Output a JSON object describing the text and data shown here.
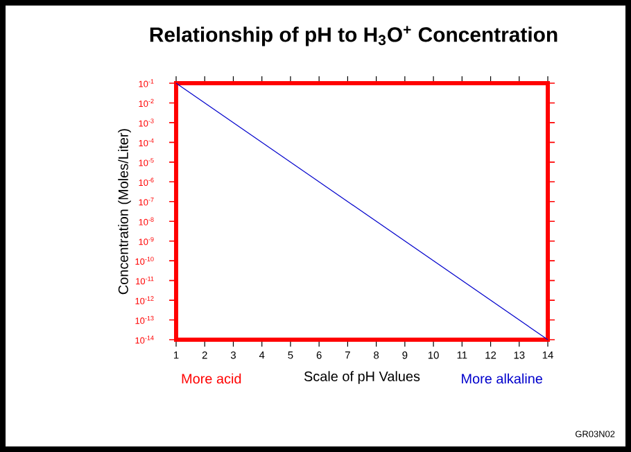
{
  "chart_data": {
    "type": "line",
    "title": "Relationship of pH to H$_{3}$O$^{+}$ Concentration",
    "xlabel": "Scale of pH Values",
    "ylabel": "Concentration (Moles/Liter)",
    "x": [
      1,
      14
    ],
    "series": [
      {
        "color": "#0000cc",
        "values": [
          0.1,
          1e-14
        ]
      }
    ],
    "log": "y",
    "xlim": [
      1,
      14
    ],
    "xticks": [
      1,
      2,
      3,
      4,
      5,
      6,
      7,
      8,
      9,
      10,
      11,
      12,
      13,
      14
    ],
    "ylim": [
      1e-14,
      0.1
    ],
    "yticks": [
      {
        "value": 0.1,
        "label": "10$^{-1}$"
      },
      {
        "value": 0.01,
        "label": "10$^{-2}$"
      },
      {
        "value": 0.001,
        "label": "10$^{-3}$"
      },
      {
        "value": 0.0001,
        "label": "10$^{-4}$"
      },
      {
        "value": 1e-05,
        "label": "10$^{-5}$"
      },
      {
        "value": 1e-06,
        "label": "10$^{-6}$"
      },
      {
        "value": 1e-07,
        "label": "10$^{-7}$"
      },
      {
        "value": 1e-08,
        "label": "10$^{-8}$"
      },
      {
        "value": 1e-09,
        "label": "10$^{-9}$"
      },
      {
        "value": 1e-10,
        "label": "10$^{-10}$"
      },
      {
        "value": 1e-11,
        "label": "10$^{-11}$"
      },
      {
        "value": 1e-12,
        "label": "10$^{-12}$"
      },
      {
        "value": 1e-13,
        "label": "10$^{-13}$"
      },
      {
        "value": 1e-14,
        "label": "10$^{-14}$"
      }
    ],
    "grid": false,
    "annotations": [
      "More acid",
      "More alkaline",
      "GR03N02"
    ]
  }
}
